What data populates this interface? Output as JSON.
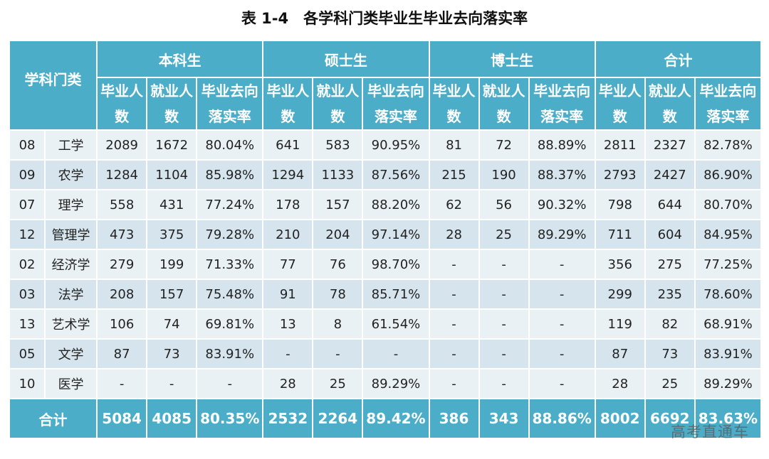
{
  "title": "表 1-4　各学科门类毕业生毕业去向落实率",
  "header": {
    "subject_label": "学科门类",
    "groups": [
      "本科生",
      "硕士生",
      "博士生",
      "合计"
    ],
    "sub_columns": [
      "毕业人数",
      "就业人数",
      "毕业去向落实率"
    ]
  },
  "rows": [
    [
      "08",
      "工学",
      2089,
      1672,
      "80.04%",
      641,
      583,
      "90.95%",
      81,
      72,
      "88.89%",
      2811,
      2327,
      "82.78%"
    ],
    [
      "09",
      "农学",
      1284,
      1104,
      "85.98%",
      1294,
      1133,
      "87.56%",
      215,
      190,
      "88.37%",
      2793,
      2427,
      "86.90%"
    ],
    [
      "07",
      "理学",
      558,
      431,
      "77.24%",
      178,
      157,
      "88.20%",
      62,
      56,
      "90.32%",
      798,
      644,
      "80.70%"
    ],
    [
      "12",
      "管理学",
      473,
      375,
      "79.28%",
      210,
      204,
      "97.14%",
      28,
      25,
      "89.29%",
      711,
      604,
      "84.95%"
    ],
    [
      "02",
      "经济学",
      279,
      199,
      "71.33%",
      77,
      76,
      "98.70%",
      "-",
      "-",
      "-",
      356,
      275,
      "77.25%"
    ],
    [
      "03",
      "法学",
      208,
      157,
      "75.48%",
      91,
      78,
      "85.71%",
      "-",
      "-",
      "-",
      299,
      235,
      "78.60%"
    ],
    [
      "13",
      "艺术学",
      106,
      74,
      "69.81%",
      13,
      8,
      "61.54%",
      "-",
      "-",
      "-",
      119,
      82,
      "68.91%"
    ],
    [
      "05",
      "文学",
      87,
      73,
      "83.91%",
      "-",
      "-",
      "-",
      "-",
      "-",
      "-",
      87,
      73,
      "83.91%"
    ],
    [
      "10",
      "医学",
      "-",
      "-",
      "-",
      28,
      25,
      "89.29%",
      "-",
      "-",
      "-",
      28,
      25,
      "89.29%"
    ]
  ],
  "total": {
    "label": "合计",
    "values": [
      5084,
      4085,
      "80.35%",
      2532,
      2264,
      "89.42%",
      386,
      343,
      "88.86%",
      8002,
      6692,
      "83.63%"
    ]
  },
  "watermark": "高考直通车"
}
